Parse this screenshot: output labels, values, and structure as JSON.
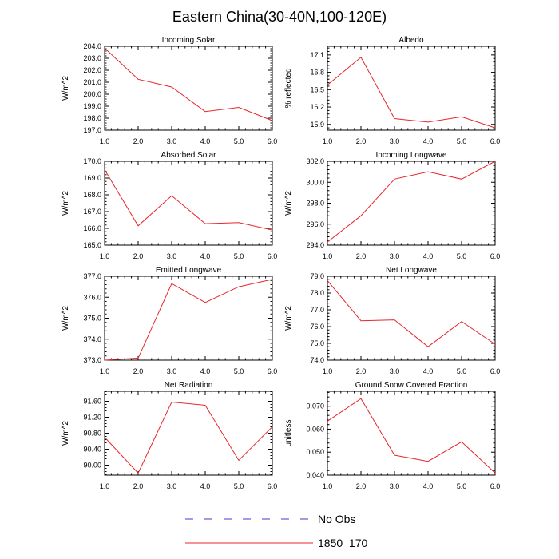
{
  "title": "Eastern China(30-40N,100-120E)",
  "chart_data": [
    {
      "type": "line",
      "title": "Incoming Solar",
      "ylabel": "W/m^2",
      "x": [
        1,
        2,
        3,
        4,
        5,
        6
      ],
      "xticks": [
        "1.0",
        "2.0",
        "3.0",
        "4.0",
        "5.0",
        "6.0"
      ],
      "xlim": [
        1,
        6
      ],
      "ylim": [
        197.0,
        204.0
      ],
      "yticks": [
        197.0,
        198.0,
        199.0,
        200.0,
        201.0,
        202.0,
        203.0,
        204.0
      ],
      "ytick_labels": [
        "197.0",
        "198.0",
        "199.0",
        "200.0",
        "201.0",
        "202.0",
        "203.0",
        "204.0"
      ],
      "series": [
        {
          "name": "1850_170",
          "values": [
            203.85,
            201.25,
            200.6,
            198.55,
            198.9,
            197.8
          ]
        }
      ]
    },
    {
      "type": "line",
      "title": "Albedo",
      "ylabel": "% reflected",
      "x": [
        1,
        2,
        3,
        4,
        5,
        6
      ],
      "xticks": [
        "1.0",
        "2.0",
        "3.0",
        "4.0",
        "5.0",
        "6.0"
      ],
      "xlim": [
        1,
        6
      ],
      "ylim": [
        15.8,
        17.25
      ],
      "yticks": [
        15.9,
        16.2,
        16.5,
        16.8,
        17.1
      ],
      "ytick_labels": [
        "15.9",
        "16.2",
        "16.5",
        "16.8",
        "17.1"
      ],
      "series": [
        {
          "name": "1850_170",
          "values": [
            16.58,
            17.06,
            16.0,
            15.94,
            16.03,
            15.84
          ]
        }
      ]
    },
    {
      "type": "line",
      "title": "Absorbed Solar",
      "ylabel": "W/m^2",
      "x": [
        1,
        2,
        3,
        4,
        5,
        6
      ],
      "xticks": [
        "1.0",
        "2.0",
        "3.0",
        "4.0",
        "5.0",
        "6.0"
      ],
      "xlim": [
        1,
        6
      ],
      "ylim": [
        165.0,
        170.0
      ],
      "yticks": [
        165.0,
        166.0,
        167.0,
        168.0,
        169.0,
        170.0
      ],
      "ytick_labels": [
        "165.0",
        "166.0",
        "167.0",
        "168.0",
        "169.0",
        "170.0"
      ],
      "series": [
        {
          "name": "1850_170",
          "values": [
            169.5,
            166.15,
            167.95,
            166.28,
            166.35,
            165.9
          ]
        }
      ]
    },
    {
      "type": "line",
      "title": "Incoming Longwave",
      "ylabel": "W/m^2",
      "x": [
        1,
        2,
        3,
        4,
        5,
        6
      ],
      "xticks": [
        "1.0",
        "2.0",
        "3.0",
        "4.0",
        "5.0",
        "6.0"
      ],
      "xlim": [
        1,
        6
      ],
      "ylim": [
        294.0,
        302.0
      ],
      "yticks": [
        294.0,
        296.0,
        298.0,
        300.0,
        302.0
      ],
      "ytick_labels": [
        "294.0",
        "296.0",
        "298.0",
        "300.0",
        "302.0"
      ],
      "series": [
        {
          "name": "1850_170",
          "values": [
            294.3,
            296.8,
            300.3,
            301.0,
            300.3,
            302.0
          ]
        }
      ]
    },
    {
      "type": "line",
      "title": "Emitted Longwave",
      "ylabel": "W/m^2",
      "x": [
        1,
        2,
        3,
        4,
        5,
        6
      ],
      "xticks": [
        "1.0",
        "2.0",
        "3.0",
        "4.0",
        "5.0",
        "6.0"
      ],
      "xlim": [
        1,
        6
      ],
      "ylim": [
        373.0,
        377.0
      ],
      "yticks": [
        373.0,
        374.0,
        375.0,
        376.0,
        377.0
      ],
      "ytick_labels": [
        "373.0",
        "374.0",
        "375.0",
        "376.0",
        "377.0"
      ],
      "series": [
        {
          "name": "1850_170",
          "values": [
            373.0,
            373.1,
            376.65,
            375.75,
            376.5,
            376.85
          ]
        }
      ]
    },
    {
      "type": "line",
      "title": "Net Longwave",
      "ylabel": "W/m^2",
      "x": [
        1,
        2,
        3,
        4,
        5,
        6
      ],
      "xticks": [
        "1.0",
        "2.0",
        "3.0",
        "4.0",
        "5.0",
        "6.0"
      ],
      "xlim": [
        1,
        6
      ],
      "ylim": [
        74.0,
        79.0
      ],
      "yticks": [
        74.0,
        75.0,
        76.0,
        77.0,
        78.0,
        79.0
      ],
      "ytick_labels": [
        "74.0",
        "75.0",
        "76.0",
        "77.0",
        "78.0",
        "79.0"
      ],
      "series": [
        {
          "name": "1850_170",
          "values": [
            78.75,
            76.35,
            76.4,
            74.8,
            76.3,
            74.95
          ]
        }
      ]
    },
    {
      "type": "line",
      "title": "Net Radiation",
      "ylabel": "W/m^2",
      "x": [
        1,
        2,
        3,
        4,
        5,
        6
      ],
      "xticks": [
        "1.0",
        "2.0",
        "3.0",
        "4.0",
        "5.0",
        "6.0"
      ],
      "xlim": [
        1,
        6
      ],
      "ylim": [
        89.75,
        91.85
      ],
      "yticks": [
        90.0,
        90.4,
        90.8,
        91.2,
        91.6
      ],
      "ytick_labels": [
        "90.00",
        "90.40",
        "90.80",
        "91.20",
        "91.60"
      ],
      "series": [
        {
          "name": "1850_170",
          "values": [
            90.7,
            89.8,
            91.58,
            91.5,
            90.12,
            90.96
          ]
        }
      ]
    },
    {
      "type": "line",
      "title": "Ground Snow Covered Fraction",
      "ylabel": "unitless",
      "x": [
        1,
        2,
        3,
        4,
        5,
        6
      ],
      "xticks": [
        "1.0",
        "2.0",
        "3.0",
        "4.0",
        "5.0",
        "6.0"
      ],
      "xlim": [
        1,
        6
      ],
      "ylim": [
        0.04,
        0.0765
      ],
      "yticks": [
        0.04,
        0.05,
        0.06,
        0.07
      ],
      "ytick_labels": [
        "0.040",
        "0.050",
        "0.060",
        "0.070"
      ],
      "series": [
        {
          "name": "1850_170",
          "values": [
            0.0635,
            0.0733,
            0.0487,
            0.046,
            0.0545,
            0.0409
          ]
        }
      ]
    }
  ],
  "legend": [
    {
      "label": "No Obs",
      "color": "#3b3bd0",
      "style": "dashed"
    },
    {
      "label": "1850_170",
      "color": "#e8262b",
      "style": "solid"
    }
  ],
  "colors": {
    "series": "#e8262b",
    "obs": "#3b3bd0",
    "axis": "#000000"
  }
}
